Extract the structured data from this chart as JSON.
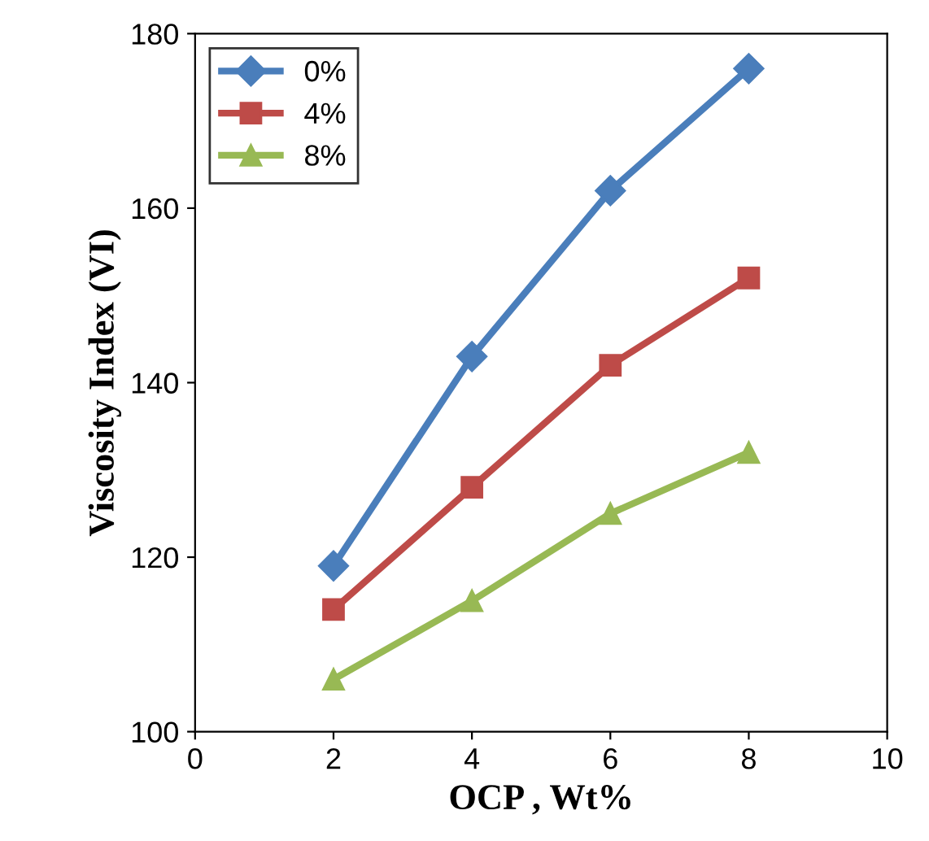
{
  "chart_data": {
    "type": "line",
    "xlabel": "OCP , Wt%",
    "ylabel": "Viscosity Index (VI)",
    "x": [
      2,
      4,
      6,
      8
    ],
    "series": [
      {
        "name": "0%",
        "color": "#4a7ebb",
        "marker": "diamond",
        "values": [
          119,
          143,
          162,
          176
        ]
      },
      {
        "name": "4%",
        "color": "#be4b48",
        "marker": "square",
        "values": [
          114,
          128,
          142,
          152
        ]
      },
      {
        "name": "8%",
        "color": "#98b954",
        "marker": "triangle",
        "values": [
          106,
          115,
          125,
          132
        ]
      }
    ],
    "xlim": [
      0,
      10
    ],
    "xticks": [
      0,
      2,
      4,
      6,
      8,
      10
    ],
    "ylim": [
      100,
      180
    ],
    "yticks": [
      100,
      120,
      140,
      160,
      180
    ],
    "grid": false,
    "legend": "top left",
    "line_style": "solid"
  }
}
